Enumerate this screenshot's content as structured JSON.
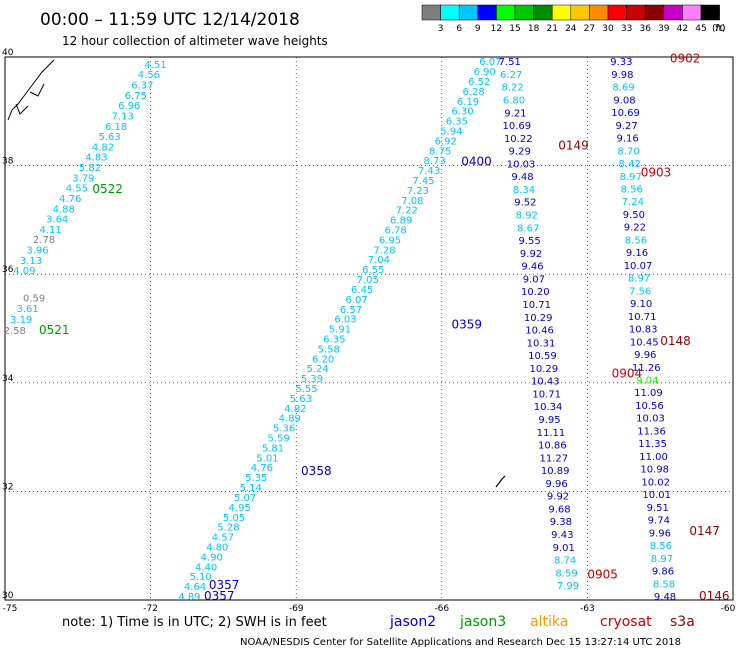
{
  "header": {
    "title": "00:00 – 11:59 UTC 12/14/2018",
    "subtitle": "12 hour collection of altimeter wave heights"
  },
  "colorbar": {
    "unit": "(ft)",
    "labels": [
      "3",
      "6",
      "9",
      "12",
      "15",
      "18",
      "21",
      "24",
      "27",
      "30",
      "33",
      "36",
      "39",
      "42",
      "45",
      "70"
    ],
    "colors": [
      "#7f7f7f",
      "#00ffff",
      "#00c8ff",
      "#0000ff",
      "#00ff00",
      "#00c800",
      "#008c00",
      "#ffff00",
      "#ffc800",
      "#ff8c00",
      "#ff0000",
      "#c80000",
      "#8c0000",
      "#c800c8",
      "#ff7fff",
      "#000000"
    ]
  },
  "footer": {
    "note": "note:  1) Time is in UTC;  2) SWH is in feet",
    "credit": "NOAA/NESDIS Center for Satellite Applications and Research      Dec 15 13:27:14 UTC 2018",
    "legend": [
      {
        "name": "jason2",
        "color": "#0000cc"
      },
      {
        "name": "jason3",
        "color": "#009900"
      },
      {
        "name": "altika",
        "color": "#ff9900"
      },
      {
        "name": "cryosat",
        "color": "#cc0000"
      },
      {
        "name": "s3a",
        "color": "#990000"
      }
    ]
  },
  "chart_data": {
    "type": "scatter",
    "xlim": [
      -75,
      -60
    ],
    "ylim": [
      30,
      40
    ],
    "x_ticks": [
      -75,
      -72,
      -69,
      -66,
      -63,
      -60
    ],
    "y_ticks": [
      30,
      32,
      34,
      36,
      38,
      40
    ],
    "x_tick_labels": [
      "-75",
      "-72",
      "-69",
      "-66",
      "-63",
      "-60"
    ],
    "y_tick_labels": [
      "30",
      "32",
      "34",
      "36",
      "38",
      "40"
    ],
    "grid": true,
    "passes": [
      {
        "label": "0522",
        "color": "#009900",
        "x": -73.2,
        "y": 37.5
      },
      {
        "label": "0521",
        "color": "#009900",
        "x": -74.3,
        "y": 34.9
      },
      {
        "label": "0400",
        "color": "#0000cc",
        "x": -65.6,
        "y": 38.0
      },
      {
        "label": "0359",
        "color": "#0000cc",
        "x": -65.8,
        "y": 35.0
      },
      {
        "label": "0358",
        "color": "#0000cc",
        "x": -68.9,
        "y": 32.3
      },
      {
        "label": "0357",
        "color": "#0000cc",
        "x": -70.8,
        "y": 30.2
      },
      {
        "label": "0357",
        "color": "#0000cc",
        "x": -70.9,
        "y": 30.0
      },
      {
        "label": "0149",
        "color": "#990000",
        "x": -63.6,
        "y": 38.3
      },
      {
        "label": "0148",
        "color": "#990000",
        "x": -61.5,
        "y": 34.7
      },
      {
        "label": "0147",
        "color": "#990000",
        "x": -60.9,
        "y": 31.2
      },
      {
        "label": "0146",
        "color": "#990000",
        "x": -60.7,
        "y": 30.0
      },
      {
        "label": "0902",
        "color": "#cc0000",
        "x": -61.3,
        "y": 39.9
      },
      {
        "label": "0903",
        "color": "#cc0000",
        "x": -61.9,
        "y": 37.8
      },
      {
        "label": "0904",
        "color": "#cc0000",
        "x": -62.5,
        "y": 34.1
      },
      {
        "label": "0905",
        "color": "#cc0000",
        "x": -63.0,
        "y": 30.4
      }
    ],
    "tracks": [
      {
        "name": "jason3-0522",
        "x0": -71.9,
        "y0": 39.8,
        "x1": -74.6,
        "y1": 36.0,
        "values": [
          "4.51",
          "4.56",
          "6.37",
          "6.75",
          "6.96",
          "7.13",
          "6.18",
          "5.63",
          "4.82",
          "4.83",
          "5.82",
          "3.79",
          "4.55",
          "4.76",
          "4.88",
          "3.64",
          "4.11",
          "2.78",
          "3.96",
          "3.13",
          "4.09"
        ],
        "colors": [
          "#00c8ff",
          "#00c8ff",
          "#00c8ff",
          "#00c8ff",
          "#00c8ff",
          "#00c8ff",
          "#00c8ff",
          "#00c8ff",
          "#00c8ff",
          "#00c8ff",
          "#00c8ff",
          "#00c8ff",
          "#00c8ff",
          "#00c8ff",
          "#00c8ff",
          "#00c8ff",
          "#00c8ff",
          "#7f7f7f",
          "#00c8ff",
          "#00c8ff",
          "#00c8ff"
        ]
      },
      {
        "name": "jason3-0521",
        "x0": -74.4,
        "y0": 35.5,
        "x1": -74.8,
        "y1": 34.9,
        "values": [
          "0.59",
          "3.61",
          "3.19",
          "2.58"
        ],
        "colors": [
          "#7f7f7f",
          "#00c8ff",
          "#00c8ff",
          "#7f7f7f"
        ]
      },
      {
        "name": "jason2-0400-0357",
        "x0": -65.0,
        "y0": 39.85,
        "x1": -71.2,
        "y1": 30.0,
        "values": [
          "6.07",
          "6.90",
          "6.52",
          "6.28",
          "6.19",
          "6.30",
          "6.35",
          "5.94",
          "6.92",
          "8.75",
          "8.73",
          "7.43",
          "7.45",
          "7.23",
          "7.08",
          "7.22",
          "6.89",
          "6.78",
          "6.95",
          "7.28",
          "7.04",
          "6.55",
          "7.05",
          "6.45",
          "6.07",
          "6.57",
          "6.03",
          "5.91",
          "6.35",
          "5.58",
          "6.20",
          "5.24",
          "5.39",
          "5.55",
          "5.63",
          "4.82",
          "4.89",
          "5.36",
          "5.59",
          "5.81",
          "5.01",
          "4.76",
          "5.35",
          "5.14",
          "5.07",
          "4.95",
          "5.05",
          "5.28",
          "4.57",
          "4.80",
          "4.90",
          "4.40",
          "5.10",
          "4.64",
          "4.89"
        ],
        "colors": [
          "#00c8ff"
        ]
      },
      {
        "name": "jason2-descending",
        "x0": -64.6,
        "y0": 39.85,
        "x1": -63.4,
        "y1": 30.2,
        "values": [
          "7.51",
          "6.27",
          "8.22",
          "6.80",
          "9.21",
          "10.69",
          "10.22",
          "9.29",
          "10.03",
          "9.48",
          "8.34",
          "9.52",
          "8.92",
          "8.67",
          "9.55",
          "9.92",
          "9.46",
          "9.07",
          "10.20",
          "10.71",
          "10.29",
          "10.46",
          "10.31",
          "10.59",
          "10.29",
          "10.43",
          "10.71",
          "10.34",
          "9.95",
          "11.11",
          "10.86",
          "11.27",
          "10.89",
          "9.96",
          "9.92",
          "9.68",
          "9.38",
          "9.43",
          "9.01",
          "8.74",
          "8.59",
          "7.99"
        ],
        "colors": [
          "#0000cc",
          "#00c8ff",
          "#00c8ff",
          "#00c8ff",
          "#0000cc",
          "#0000cc",
          "#0000cc",
          "#0000cc",
          "#0000cc",
          "#0000cc",
          "#00c8ff",
          "#0000cc",
          "#00c8ff",
          "#00c8ff",
          "#0000cc",
          "#0000cc",
          "#0000cc",
          "#0000cc",
          "#0000cc",
          "#0000cc",
          "#0000cc",
          "#0000cc",
          "#0000cc",
          "#0000cc",
          "#0000cc",
          "#0000cc",
          "#0000cc",
          "#0000cc",
          "#0000cc",
          "#0000cc",
          "#0000cc",
          "#0000cc",
          "#0000cc",
          "#0000cc",
          "#0000cc",
          "#0000cc",
          "#0000cc",
          "#0000cc",
          "#0000cc",
          "#00c8ff",
          "#00c8ff",
          "#00c8ff"
        ]
      },
      {
        "name": "jason2-ascending",
        "x0": -62.3,
        "y0": 39.85,
        "x1": -61.4,
        "y1": 30.0,
        "values": [
          "9.33",
          "9.98",
          "8.69",
          "9.08",
          "10.69",
          "9.27",
          "9.16",
          "8.70",
          "8.42",
          "8.97",
          "8.56",
          "7.24",
          "9.50",
          "9.22",
          "8.56",
          "9.16",
          "10.07",
          "8.97",
          "7.56",
          "9.10",
          "10.71",
          "10.83",
          "10.45",
          "9.96",
          "11.26",
          "9.04",
          "11.09",
          "10.56",
          "10.03",
          "11.36",
          "11.35",
          "11.00",
          "10.98",
          "10.02",
          "10.01",
          "9.51",
          "9.74",
          "9.96",
          "8.56",
          "8.97",
          "9.86",
          "8.58",
          "9.48"
        ],
        "colors": [
          "#0000cc",
          "#0000cc",
          "#00c8ff",
          "#0000cc",
          "#0000cc",
          "#0000cc",
          "#0000cc",
          "#00c8ff",
          "#00c8ff",
          "#00c8ff",
          "#00c8ff",
          "#00c8ff",
          "#0000cc",
          "#0000cc",
          "#00c8ff",
          "#0000cc",
          "#0000cc",
          "#00c8ff",
          "#00c8ff",
          "#0000cc",
          "#0000cc",
          "#0000cc",
          "#0000cc",
          "#0000cc",
          "#0000cc",
          "#00ff00",
          "#0000cc",
          "#0000cc",
          "#0000cc",
          "#0000cc",
          "#0000cc",
          "#0000cc",
          "#0000cc",
          "#0000cc",
          "#0000cc",
          "#0000cc",
          "#0000cc",
          "#0000cc",
          "#00c8ff",
          "#00c8ff",
          "#0000cc",
          "#00c8ff",
          "#0000cc"
        ]
      }
    ]
  }
}
